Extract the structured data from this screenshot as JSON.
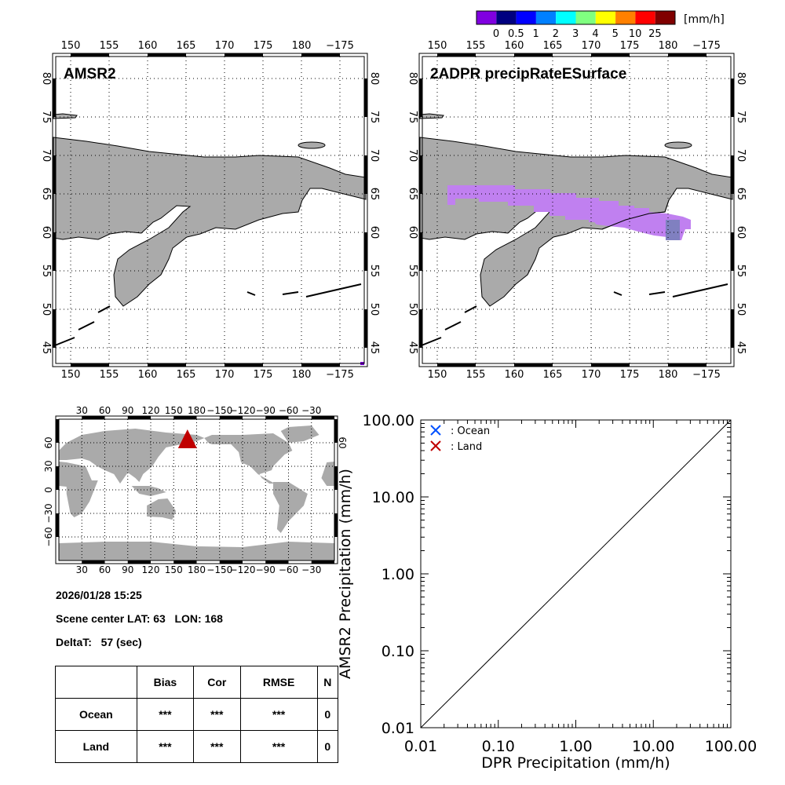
{
  "colorbar": {
    "colors": [
      "#8000e0",
      "#000080",
      "#0000ff",
      "#0080ff",
      "#00ffff",
      "#80ff80",
      "#ffff00",
      "#ff8000",
      "#ff0000",
      "#800000"
    ],
    "labels": [
      "0",
      "0.5",
      "1",
      "2",
      "3",
      "4",
      "5",
      "10",
      "25"
    ],
    "unit": "[mm/h]"
  },
  "maps": [
    {
      "title": "AMSR2"
    },
    {
      "title": "2ADPR precipRateESurface",
      "precip_color": "#c080f0",
      "precip_core_color": "#8080c0"
    }
  ],
  "regional_lon_labels": [
    "150",
    "155",
    "160",
    "165",
    "170",
    "175",
    "180",
    "−175"
  ],
  "regional_lat_labels": [
    "80",
    "75",
    "70",
    "65",
    "60",
    "55",
    "50",
    "45"
  ],
  "land_color": "#aaaaaa",
  "world_map": {
    "lon_labels": [
      "30",
      "60",
      "90",
      "120",
      "150",
      "180",
      "−150",
      "−120",
      "−90",
      "−60",
      "−30"
    ],
    "lat_labels_left": [
      "60",
      "30",
      "0",
      "−30",
      "−60"
    ],
    "lat_labels_right": [
      "60"
    ],
    "marker": {
      "lat": 63,
      "lon": 168,
      "color": "#c00000",
      "shape": "triangle"
    }
  },
  "info": {
    "datetime": "2026/01/28 15:25",
    "scene_center": "Scene center LAT: 63   LON: 168",
    "delta_t": "DeltaT:   57 (sec)"
  },
  "stats_table": {
    "headers": [
      "",
      "Bias",
      "Cor",
      "RMSE",
      "N"
    ],
    "rows": [
      [
        "Ocean",
        "***",
        "***",
        "***",
        "0"
      ],
      [
        "Land",
        "***",
        "***",
        "***",
        "0"
      ]
    ]
  },
  "chart_data": {
    "type": "scatter",
    "xlabel": "DPR Precipitation (mm/h)",
    "ylabel": "AMSR2 Precipitation (mm/h)",
    "xscale": "log",
    "yscale": "log",
    "xlim": [
      0.01,
      100
    ],
    "ylim": [
      0.01,
      100
    ],
    "tick_labels": [
      "0.01",
      "0.10",
      "1.00",
      "10.00",
      "100.00"
    ],
    "legend_placement": "top-left",
    "series": [
      {
        "name": ": Ocean",
        "color": "#0050ff",
        "marker": "x",
        "points": []
      },
      {
        "name": ": Land",
        "color": "#c00000",
        "marker": "x",
        "points": []
      }
    ],
    "reference_line": "1:1"
  }
}
